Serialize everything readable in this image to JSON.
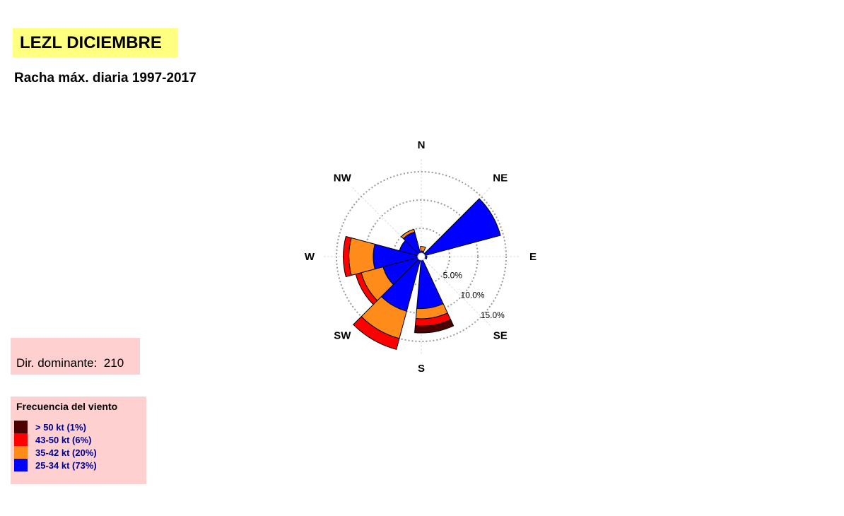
{
  "title": "LEZL DICIEMBRE",
  "subtitle": "Racha máx. diaria 1997-2017",
  "dominant": {
    "label": "Dir. dominante:",
    "value": "210"
  },
  "legend": {
    "title": "Frecuencia del viento",
    "items": [
      {
        "label": "> 50 kt (1%)",
        "color": "#4d0000"
      },
      {
        "label": "43-50 kt (6%)",
        "color": "#ff0000"
      },
      {
        "label": "35-42 kt (20%)",
        "color": "#ff8c1a"
      },
      {
        "label": "25-34 kt (73%)",
        "color": "#0000ff"
      }
    ]
  },
  "chart_data": {
    "type": "windrose",
    "directions": [
      "N",
      "NE",
      "E",
      "SE",
      "S",
      "SW",
      "W",
      "NW"
    ],
    "compass_labels": [
      "N",
      "NE",
      "E",
      "SE",
      "S",
      "SW",
      "W",
      "NW"
    ],
    "ring_values": [
      5,
      10,
      15
    ],
    "ring_labels": [
      "5.0%",
      "10.0%",
      "15.0%"
    ],
    "rmax": 15,
    "sector_width_deg": 30,
    "series": [
      {
        "name": "25-34 kt",
        "color": "#0000ff"
      },
      {
        "name": "35-42 kt",
        "color": "#ff8c1a"
      },
      {
        "name": "43-50 kt",
        "color": "#ff0000"
      },
      {
        "name": "> 50 kt",
        "color": "#4d0000"
      }
    ],
    "sectors": [
      {
        "dir_deg": 10,
        "cum": [
          1.0,
          1.8,
          1.8,
          1.8
        ]
      },
      {
        "dir_deg": 40,
        "cum": [
          0.8,
          0.8,
          0.8,
          0.8
        ]
      },
      {
        "dir_deg": 60,
        "cum": [
          14.5,
          14.5,
          14.5,
          14.5
        ]
      },
      {
        "dir_deg": 100,
        "cum": [
          1.0,
          1.0,
          1.0,
          1.0
        ]
      },
      {
        "dir_deg": 170,
        "cum": [
          9.2,
          11.0,
          12.3,
          13.5
        ]
      },
      {
        "dir_deg": 210,
        "cum": [
          10.0,
          15.0,
          17.0,
          17.0
        ]
      },
      {
        "dir_deg": 240,
        "cum": [
          7.0,
          11.0,
          12.0,
          12.0
        ]
      },
      {
        "dir_deg": 270,
        "cum": [
          8.5,
          12.8,
          13.8,
          13.8
        ]
      },
      {
        "dir_deg": 300,
        "cum": [
          4.0,
          4.0,
          4.0,
          4.0
        ]
      },
      {
        "dir_deg": 330,
        "cum": [
          4.5,
          5.0,
          5.0,
          5.0
        ]
      }
    ]
  }
}
